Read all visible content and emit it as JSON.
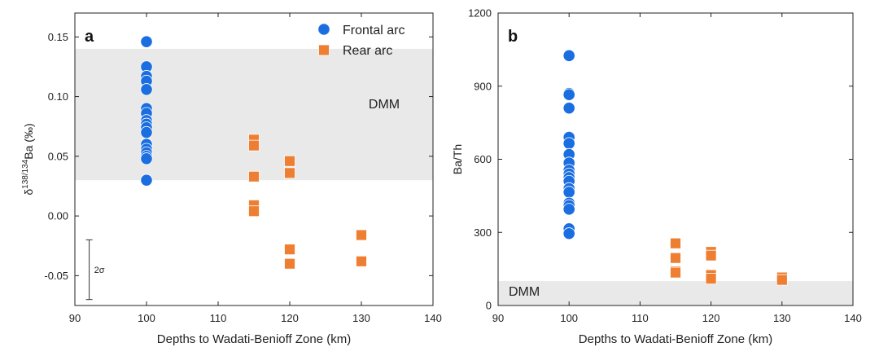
{
  "chart_data": [
    {
      "panel_label": "a",
      "type": "scatter",
      "xlabel": "Depths to Wadati-Benioff Zone (km)",
      "ylabel_parts": {
        "prefix": "δ",
        "sup": "138/134",
        "suffix": "Ba (‰)"
      },
      "xlim": [
        90,
        140
      ],
      "ylim": [
        -0.075,
        0.17
      ],
      "xticks": [
        90,
        100,
        110,
        120,
        130,
        140
      ],
      "yticks": [
        -0.05,
        0.0,
        0.05,
        0.1,
        0.15
      ],
      "ytick_labels": [
        "-0.05",
        "0.00",
        "0.05",
        "0.10",
        "0.15"
      ],
      "band": {
        "label": "DMM",
        "y_range": [
          0.03,
          0.14
        ]
      },
      "error_bar": {
        "label": "2σ",
        "x": 92,
        "y_range": [
          -0.07,
          -0.02
        ]
      },
      "legend": [
        {
          "name": "Frontal arc",
          "marker": "circle",
          "color": "#1b6ee0"
        },
        {
          "name": "Rear arc",
          "marker": "square",
          "color": "#ee7f32"
        }
      ],
      "series": [
        {
          "name": "Frontal arc",
          "marker": "circle",
          "color": "#1b6ee0",
          "x": [
            100,
            100,
            100,
            100,
            100,
            100,
            100,
            100,
            100,
            100,
            100,
            100,
            100,
            100,
            100,
            100,
            100
          ],
          "y": [
            0.146,
            0.125,
            0.117,
            0.113,
            0.106,
            0.09,
            0.086,
            0.08,
            0.077,
            0.074,
            0.07,
            0.06,
            0.056,
            0.053,
            0.05,
            0.048,
            0.03
          ]
        },
        {
          "name": "Rear arc",
          "marker": "square",
          "color": "#ee7f32",
          "x": [
            115,
            115,
            115,
            115,
            115,
            120,
            120,
            120,
            120,
            130,
            130
          ],
          "y": [
            0.064,
            0.059,
            0.033,
            0.009,
            0.004,
            0.046,
            0.036,
            -0.028,
            -0.04,
            -0.016,
            -0.038
          ]
        }
      ]
    },
    {
      "panel_label": "b",
      "type": "scatter",
      "xlabel": "Depths to Wadati-Benioff Zone (km)",
      "ylabel": "Ba/Th",
      "xlim": [
        90,
        140
      ],
      "ylim": [
        0,
        1200
      ],
      "xticks": [
        90,
        100,
        110,
        120,
        130,
        140
      ],
      "yticks": [
        0,
        300,
        600,
        900,
        1200
      ],
      "band": {
        "label": "DMM",
        "y_range": [
          0,
          100
        ]
      },
      "series": [
        {
          "name": "Frontal arc",
          "marker": "circle",
          "color": "#1b6ee0",
          "x": [
            100,
            100,
            100,
            100,
            100,
            100,
            100,
            100,
            100,
            100,
            100,
            100,
            100,
            100,
            100,
            100,
            100,
            100,
            100
          ],
          "y": [
            1025,
            870,
            865,
            810,
            690,
            665,
            620,
            585,
            555,
            540,
            525,
            510,
            480,
            465,
            420,
            410,
            395,
            315,
            295
          ]
        },
        {
          "name": "Rear arc",
          "marker": "square",
          "color": "#ee7f32",
          "x": [
            115,
            115,
            115,
            115,
            120,
            120,
            120,
            120,
            130,
            130
          ],
          "y": [
            255,
            195,
            140,
            135,
            220,
            205,
            125,
            110,
            115,
            105
          ]
        }
      ]
    }
  ]
}
